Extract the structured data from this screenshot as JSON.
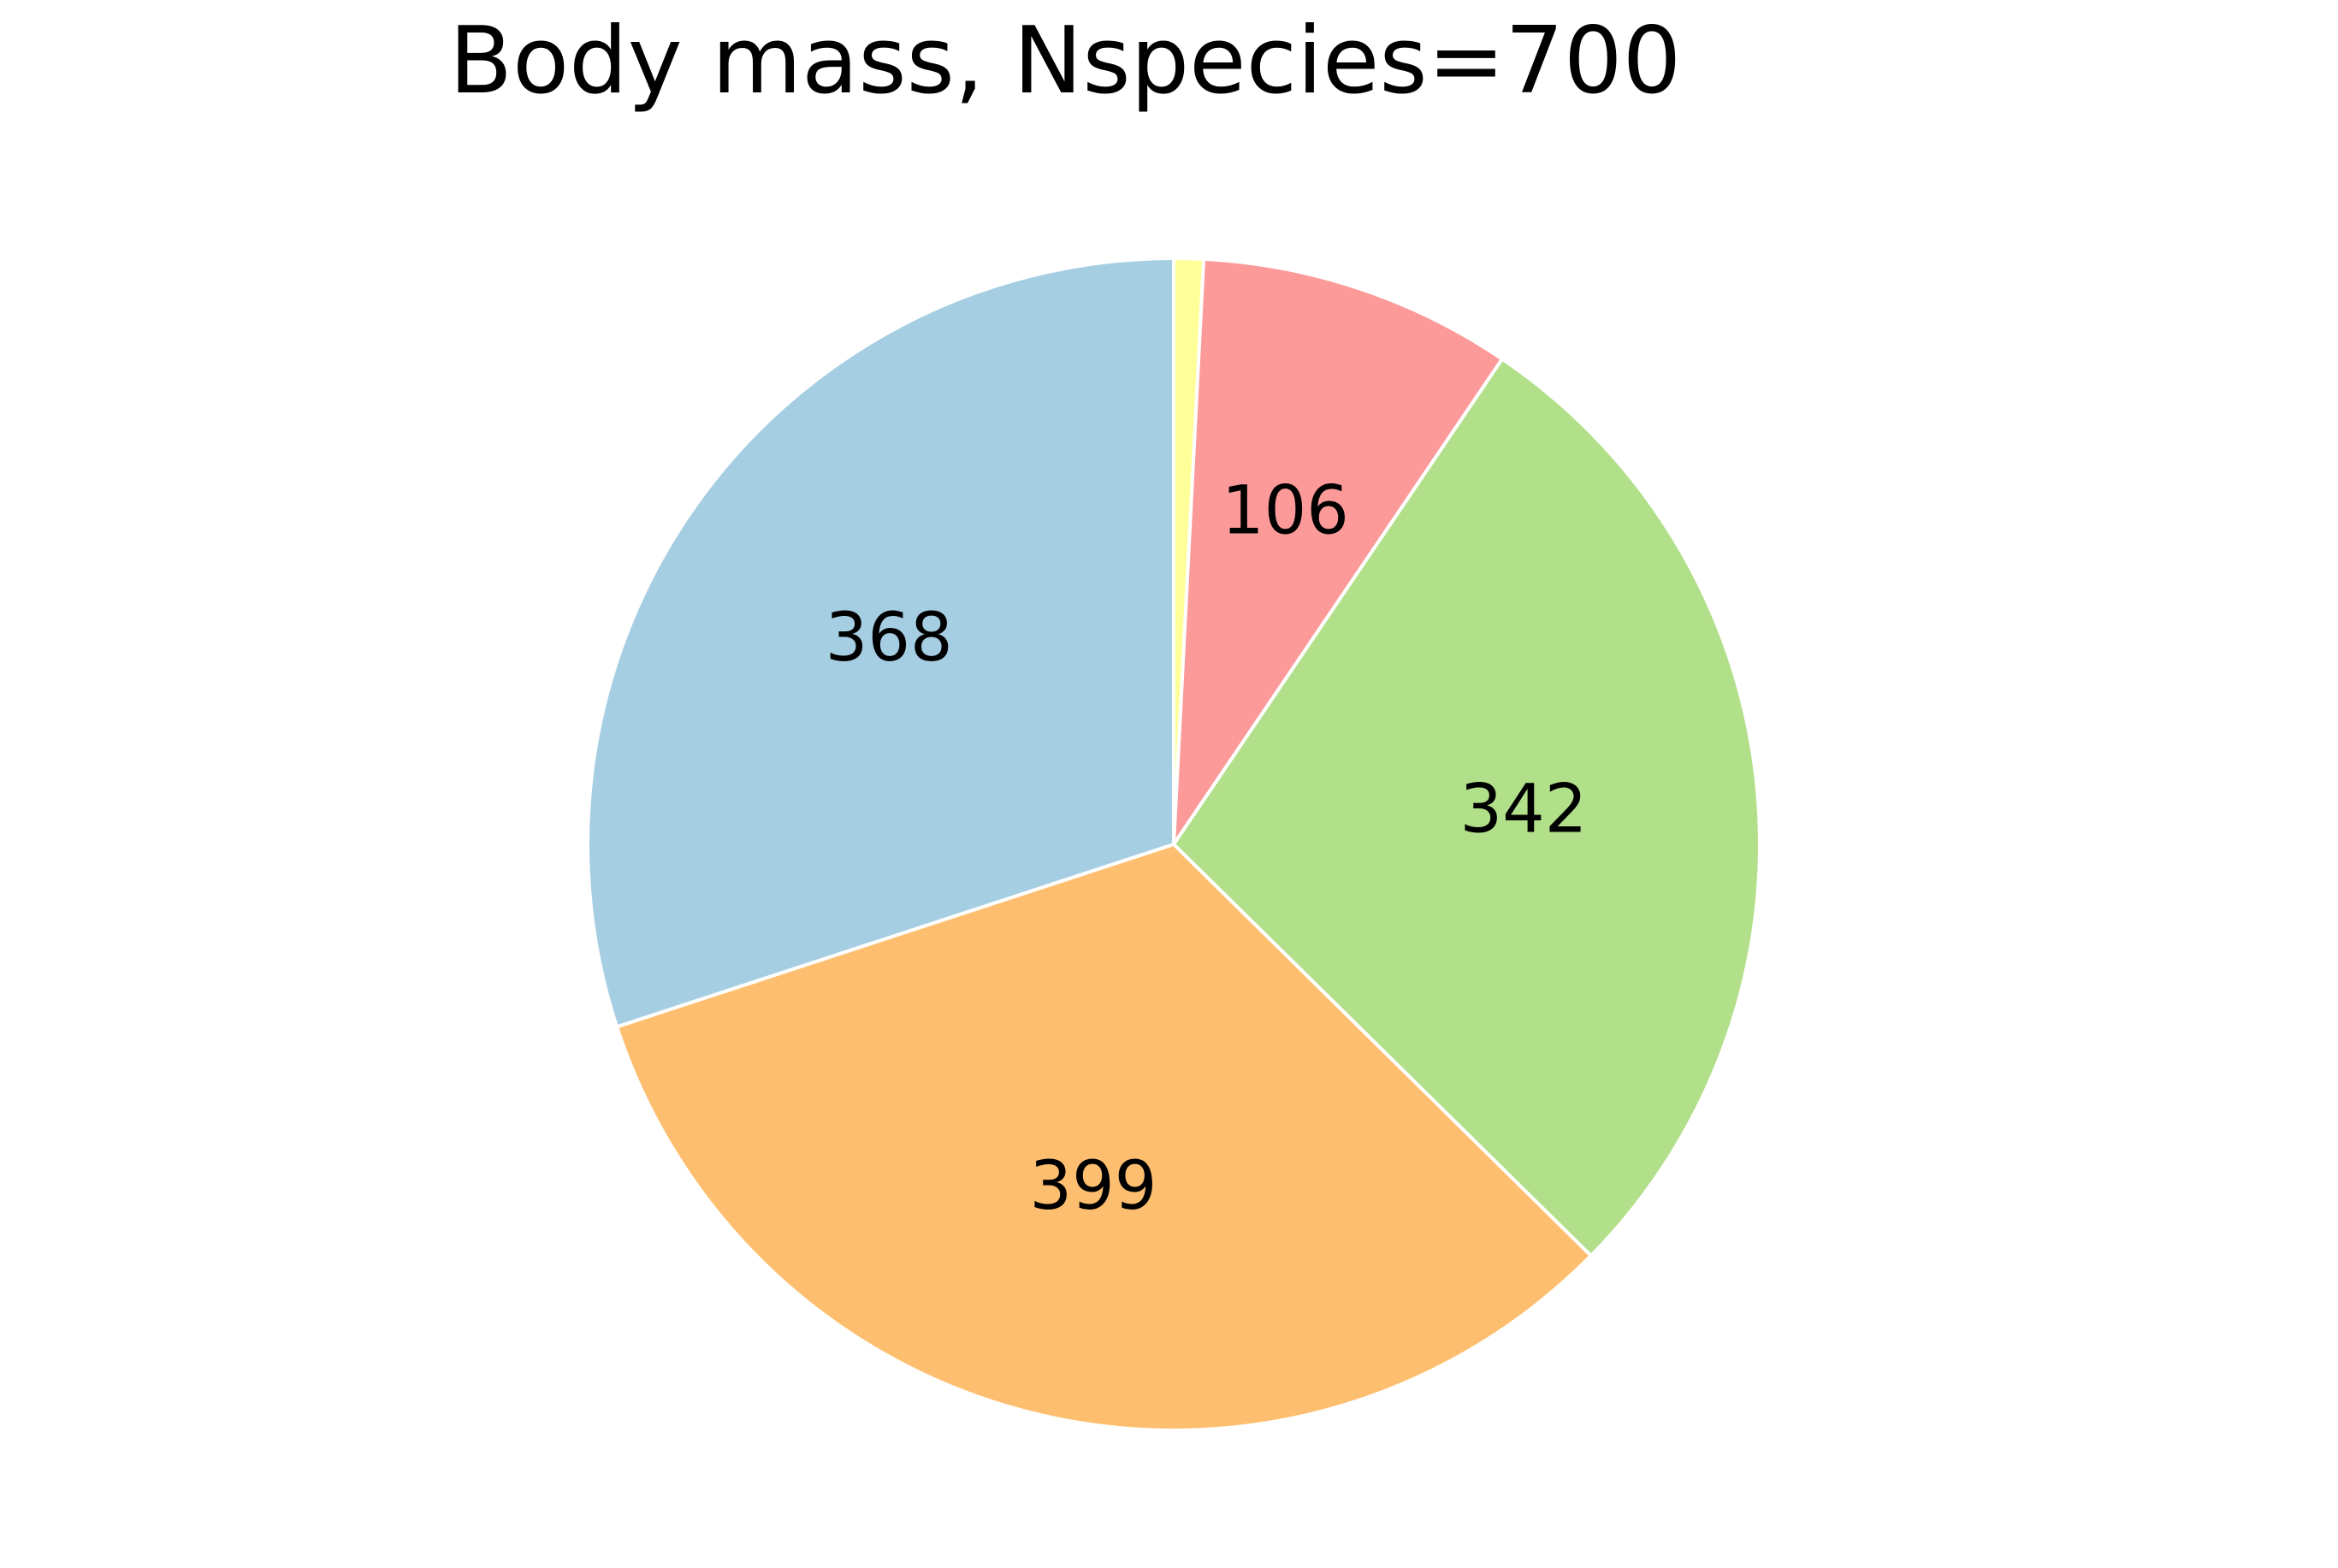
{
  "chart_data": {
    "type": "pie",
    "title": "Body mass, Nspecies=700",
    "start_angle_deg": 90,
    "direction": "clockwise",
    "slices": [
      {
        "label": "",
        "value": 10,
        "color": "#FFFF99"
      },
      {
        "label": "106",
        "value": 106,
        "color": "#FB9A99"
      },
      {
        "label": "342",
        "value": 342,
        "color": "#B2DF8A"
      },
      {
        "label": "399",
        "value": 399,
        "color": "#FDBF6F"
      },
      {
        "label": "368",
        "value": 368,
        "color": "#A6CEE3"
      }
    ]
  }
}
